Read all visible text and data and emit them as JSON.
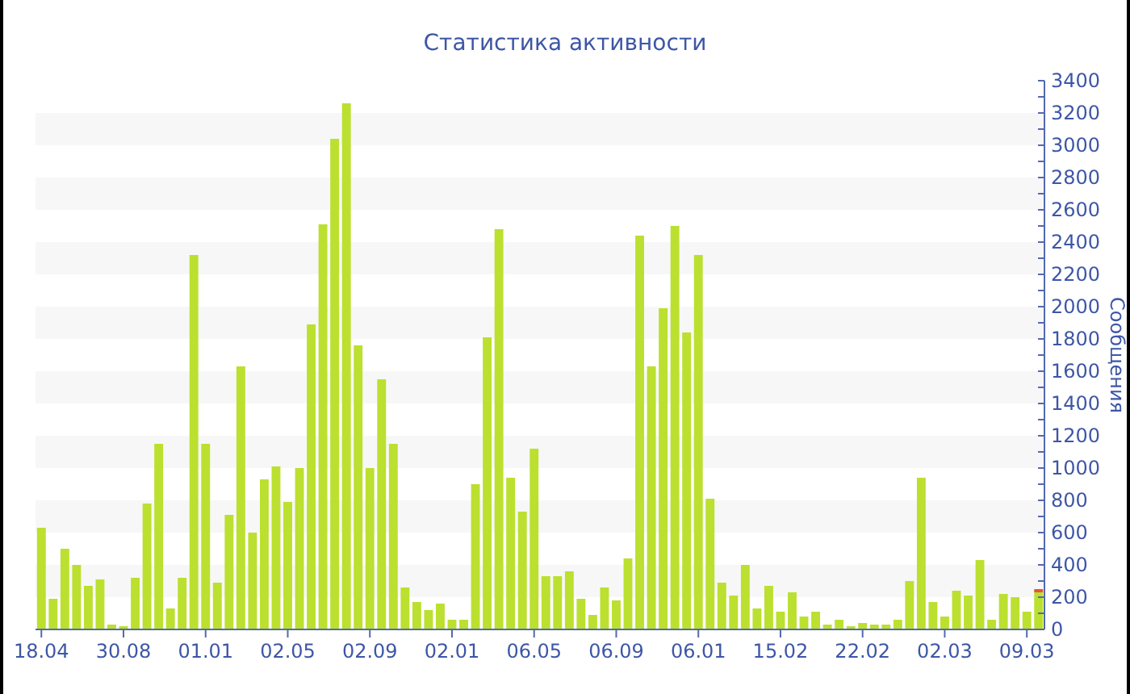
{
  "chart_data": {
    "type": "bar",
    "title": "Статистика активности",
    "ylabel": "Сообщения",
    "categories": [
      "18.04",
      null,
      null,
      null,
      null,
      null,
      null,
      "30.08",
      null,
      null,
      null,
      null,
      null,
      null,
      "01.01",
      null,
      null,
      null,
      null,
      null,
      null,
      "02.05",
      null,
      null,
      null,
      null,
      null,
      null,
      "02.09",
      null,
      null,
      null,
      null,
      null,
      null,
      "02.01",
      null,
      null,
      null,
      null,
      null,
      null,
      "06.05",
      null,
      null,
      null,
      null,
      null,
      null,
      "06.09",
      null,
      null,
      null,
      null,
      null,
      null,
      "06.01",
      null,
      null,
      null,
      null,
      null,
      null,
      "15.02",
      null,
      null,
      null,
      null,
      null,
      null,
      "22.02",
      null,
      null,
      null,
      null,
      null,
      null,
      "02.03",
      null,
      null,
      null,
      null,
      null,
      null,
      "09.03",
      null
    ],
    "series": [
      {
        "color": "#bbe02f",
        "values": [
          630,
          190,
          500,
          400,
          270,
          310,
          30,
          20,
          320,
          780,
          1150,
          130,
          320,
          2320,
          1150,
          290,
          710,
          1630,
          600,
          930,
          1010,
          790,
          1000,
          1890,
          2510,
          3040,
          3260,
          1760,
          1000,
          1550,
          1150,
          260,
          170,
          120,
          160,
          60,
          60,
          900,
          1810,
          2480,
          940,
          730,
          1120,
          330,
          330,
          360,
          190,
          90,
          260,
          180,
          440,
          2440,
          1630,
          1990,
          2500,
          1840,
          2320,
          810,
          290,
          210,
          400,
          130,
          270,
          110,
          230,
          80,
          110,
          30,
          60,
          20,
          40,
          30,
          30,
          60,
          300,
          940,
          170,
          80,
          240,
          210,
          430,
          60,
          220,
          200,
          110,
          230
        ]
      },
      {
        "color": "#e8533a",
        "values": [
          null,
          null,
          null,
          null,
          null,
          null,
          null,
          null,
          null,
          null,
          null,
          null,
          null,
          null,
          null,
          null,
          null,
          null,
          null,
          null,
          null,
          null,
          null,
          null,
          null,
          null,
          null,
          null,
          null,
          null,
          null,
          null,
          null,
          null,
          null,
          null,
          null,
          null,
          null,
          null,
          null,
          null,
          null,
          null,
          null,
          null,
          null,
          null,
          null,
          null,
          null,
          null,
          null,
          null,
          null,
          null,
          null,
          null,
          null,
          null,
          null,
          null,
          null,
          null,
          null,
          null,
          null,
          null,
          null,
          null,
          null,
          null,
          null,
          null,
          null,
          null,
          null,
          null,
          null,
          null,
          null,
          null,
          null,
          null,
          null,
          20
        ]
      }
    ],
    "stacked": true,
    "ylim": [
      0,
      3400
    ],
    "yticks": [
      0,
      {
        "value": 100,
        "label": null
      },
      200,
      {
        "value": 300,
        "label": null
      },
      400,
      {
        "value": 500,
        "label": null
      },
      600,
      {
        "value": 700,
        "label": null
      },
      800,
      {
        "value": 900,
        "label": null
      },
      1000,
      {
        "value": 1100,
        "label": null
      },
      1200,
      {
        "value": 1300,
        "label": null
      },
      1400,
      {
        "value": 1500,
        "label": null
      },
      1600,
      {
        "value": 1700,
        "label": null
      },
      1800,
      {
        "value": 1900,
        "label": null
      },
      2000,
      {
        "value": 2100,
        "label": null
      },
      2200,
      {
        "value": 2300,
        "label": null
      },
      2400,
      {
        "value": 2500,
        "label": null
      },
      2600,
      {
        "value": 2700,
        "label": null
      },
      2800,
      {
        "value": 2900,
        "label": null
      },
      3000,
      {
        "value": 3100,
        "label": null
      },
      3200,
      {
        "value": 3300,
        "label": null
      },
      3400
    ],
    "bands": [
      {
        "axis": "y",
        "from": 200,
        "to": 400,
        "color": "#f7f7f7"
      },
      {
        "axis": "y",
        "from": 600,
        "to": 800,
        "color": "#f7f7f7"
      },
      {
        "axis": "y",
        "from": 1000,
        "to": 1200,
        "color": "#f7f7f7"
      },
      {
        "axis": "y",
        "from": 1400,
        "to": 1600,
        "color": "#f7f7f7"
      },
      {
        "axis": "y",
        "from": 1800,
        "to": 2000,
        "color": "#f7f7f7"
      },
      {
        "axis": "y",
        "from": 2200,
        "to": 2400,
        "color": "#f7f7f7"
      },
      {
        "axis": "y",
        "from": 2600,
        "to": 2800,
        "color": "#f7f7f7"
      },
      {
        "axis": "y",
        "from": 3000,
        "to": 3200,
        "color": "#f7f7f7"
      }
    ]
  }
}
